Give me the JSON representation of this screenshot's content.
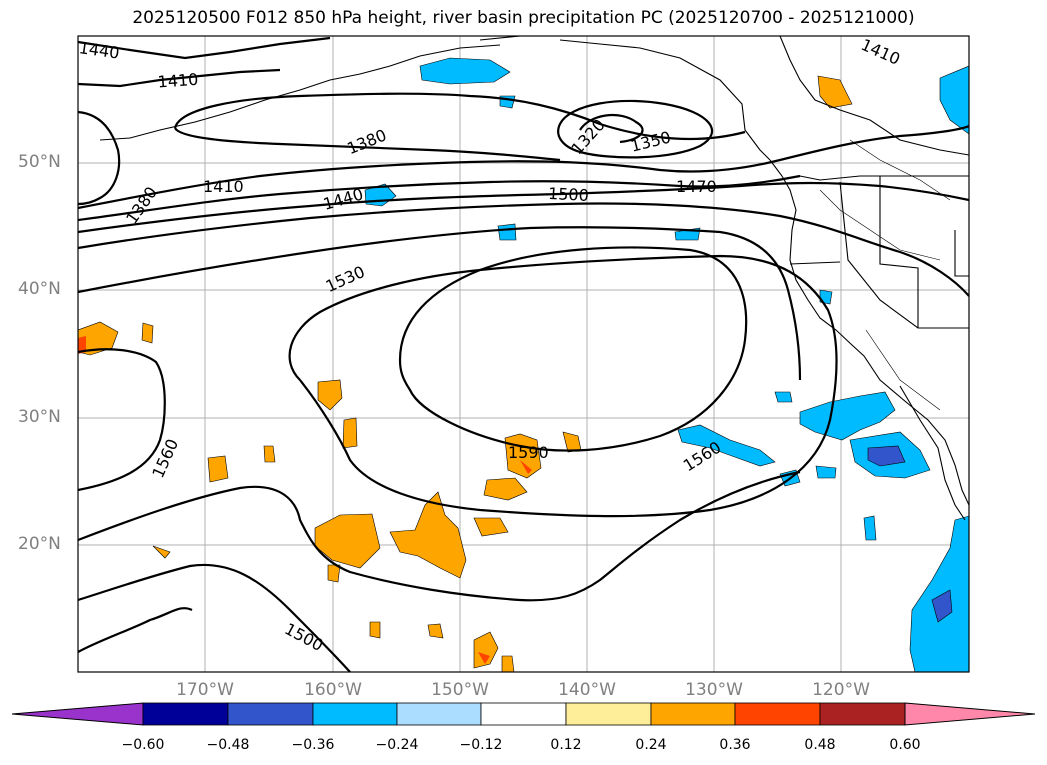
{
  "title": "2025120500 F012 850 hPa height, river basin precipitation PC (2025120700 - 2025121000)",
  "latitude_labels": [
    "50°N",
    "40°N",
    "30°N",
    "20°N"
  ],
  "longitude_labels": [
    "170°W",
    "160°W",
    "150°W",
    "140°W",
    "130°W",
    "120°W"
  ],
  "contour_labels": [
    "1440",
    "1410",
    "1380",
    "1320",
    "1350",
    "1410",
    "1380",
    "1410",
    "1440",
    "1500",
    "1470",
    "1530",
    "1560",
    "1590",
    "1560",
    "1500"
  ],
  "colorbar": {
    "ticks": [
      "−0.60",
      "−0.48",
      "−0.36",
      "−0.24",
      "−0.12",
      "0.12",
      "0.24",
      "0.36",
      "0.48",
      "0.60"
    ],
    "colors": [
      "#9933cc",
      "#000099",
      "#3355cc",
      "#00bbff",
      "#aaddff",
      "#ffffff",
      "#ffee99",
      "#ffa500",
      "#ff4400",
      "#aa2222",
      "#ff88aa"
    ]
  },
  "colors": {
    "orange": "#ffa500",
    "red": "#ff4400",
    "blue": "#00bbff",
    "darkblue": "#3355cc"
  }
}
